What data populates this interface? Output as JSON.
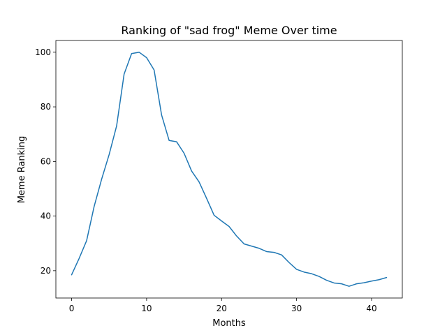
{
  "chart_data": {
    "type": "line",
    "title": "Ranking of \"sad frog\" Meme Over time",
    "xlabel": "Months",
    "ylabel": "Meme Ranking",
    "xlim": [
      -2.1,
      44.1
    ],
    "ylim": [
      10.0,
      104.3
    ],
    "xticks": [
      0,
      10,
      20,
      30,
      40
    ],
    "yticks": [
      20,
      40,
      60,
      80,
      100
    ],
    "grid": false,
    "legend": "none",
    "series": [
      {
        "color": "#1f77b4",
        "x": [
          0,
          1,
          2,
          3,
          4,
          5,
          6,
          7,
          8,
          9,
          10,
          11,
          12,
          13,
          14,
          15,
          16,
          17,
          18,
          19,
          20,
          21,
          22,
          23,
          24,
          25,
          26,
          27,
          28,
          29,
          30,
          31,
          32,
          33,
          34,
          35,
          36,
          37,
          38,
          39,
          40,
          41,
          42
        ],
        "values": [
          18.5,
          24.5,
          31.0,
          43.5,
          53.5,
          62.5,
          73.0,
          92.0,
          99.5,
          100.0,
          98.0,
          93.5,
          77.0,
          67.7,
          67.2,
          63.0,
          56.5,
          52.5,
          46.5,
          40.3,
          38.2,
          36.2,
          32.7,
          29.8,
          29.0,
          28.2,
          27.0,
          26.7,
          25.8,
          23.0,
          20.5,
          19.5,
          18.9,
          17.9,
          16.5,
          15.5,
          15.2,
          14.3,
          15.2,
          15.6,
          16.2,
          16.7,
          17.5
        ]
      }
    ]
  }
}
